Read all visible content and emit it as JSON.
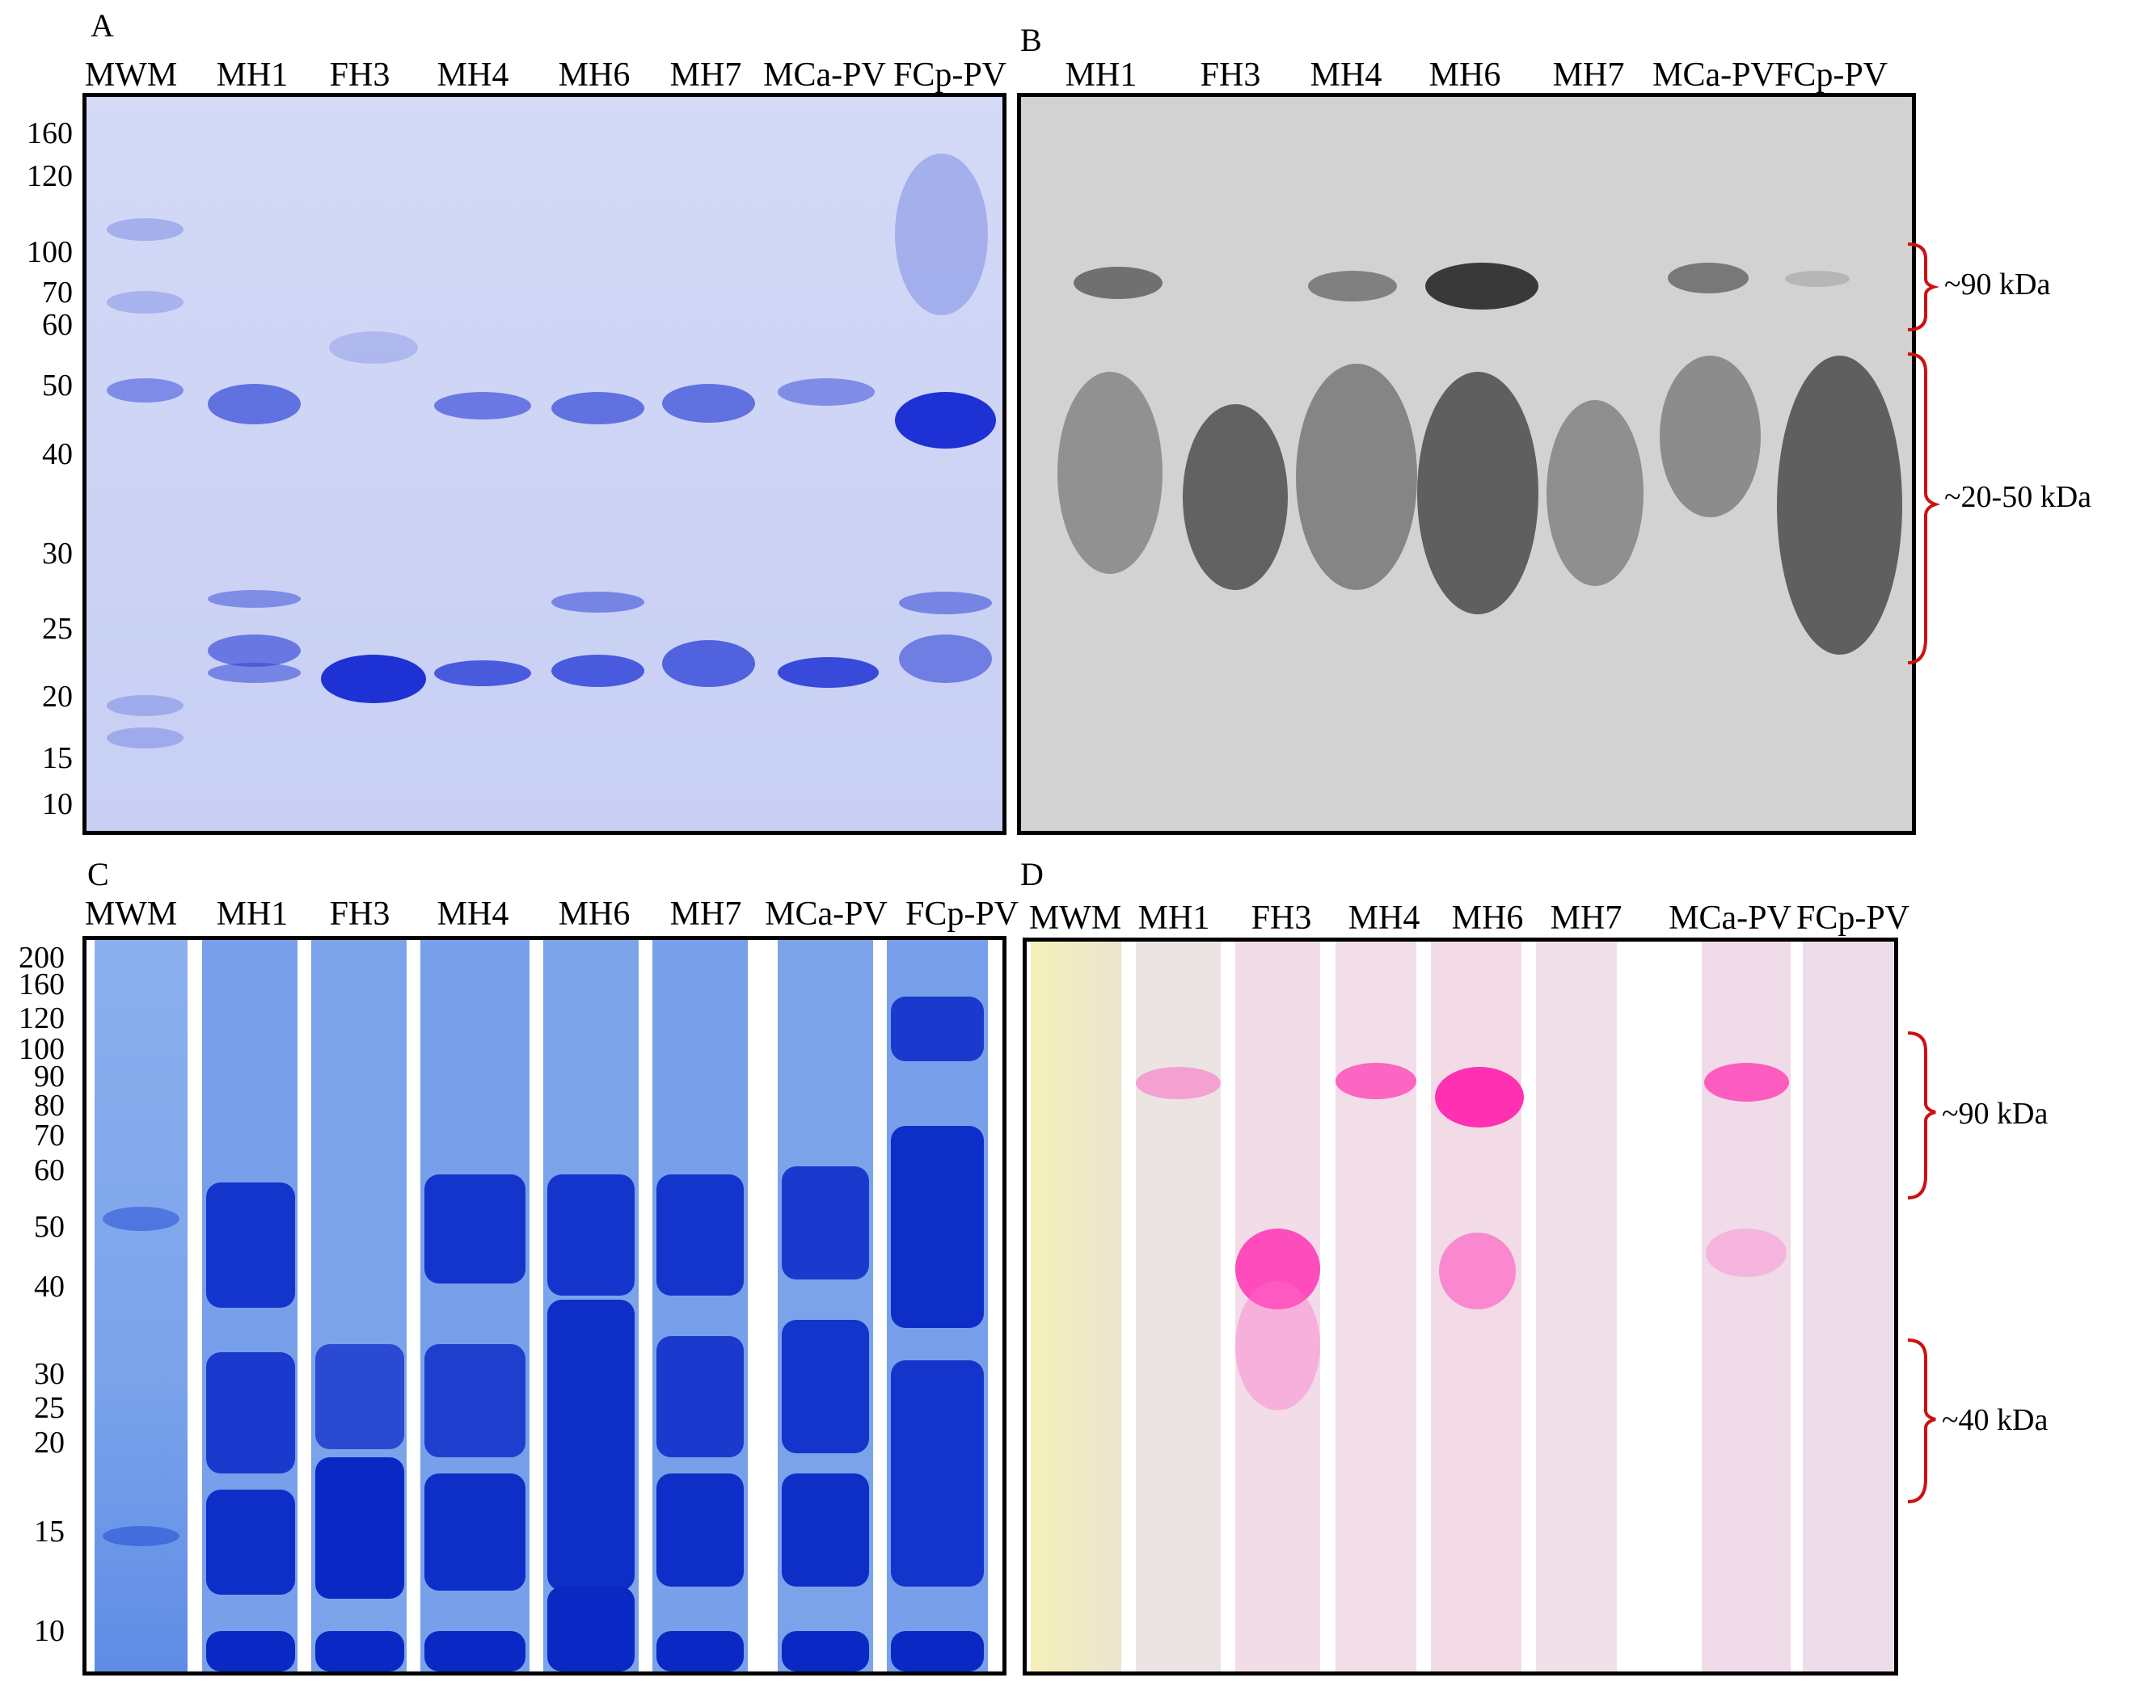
{
  "panels": {
    "a": {
      "letter": "A",
      "lanes": [
        "MWM",
        "MH1",
        "FH3",
        "MH4",
        "MH6",
        "MH7",
        "MCa-PV",
        "FCp-PV"
      ],
      "mw_markers": [
        "160",
        "120",
        "100",
        "70",
        "60",
        "50",
        "40",
        "30",
        "25",
        "20",
        "15",
        "10"
      ]
    },
    "b": {
      "letter": "B",
      "lanes": [
        "MH1",
        "FH3",
        "MH4",
        "MH6",
        "MH7",
        "MCa-PV",
        "FCp-PV"
      ],
      "ranges": [
        "~90 kDa",
        "~20-50 kDa"
      ]
    },
    "c": {
      "letter": "C",
      "lanes": [
        "MWM",
        "MH1",
        "FH3",
        "MH4",
        "MH6",
        "MH7",
        "MCa-PV",
        "FCp-PV"
      ],
      "mw_markers": [
        "200",
        "160",
        "120",
        "100",
        "90",
        "80",
        "70",
        "60",
        "50",
        "40",
        "30",
        "25",
        "20",
        "15",
        "10"
      ]
    },
    "d": {
      "letter": "D",
      "lanes": [
        "MWM",
        "MH1",
        "FH3",
        "MH4",
        "MH6",
        "MH7",
        "MCa-PV",
        "FCp-PV"
      ],
      "ranges": [
        "~90 kDa",
        "~40 kDa"
      ]
    }
  },
  "colors": {
    "coomassie_bg": "#cfd6f5",
    "coomassie_band": "#2d3fd6",
    "blot_bg": "#d4d4d4",
    "blot_band": "#333333",
    "native_bg": "#7aa3ea",
    "native_band": "#0a2ec4",
    "zymo_bg": "#efdbe8",
    "zymo_band": "#ff3fb9",
    "bracket": "#cc1111"
  }
}
